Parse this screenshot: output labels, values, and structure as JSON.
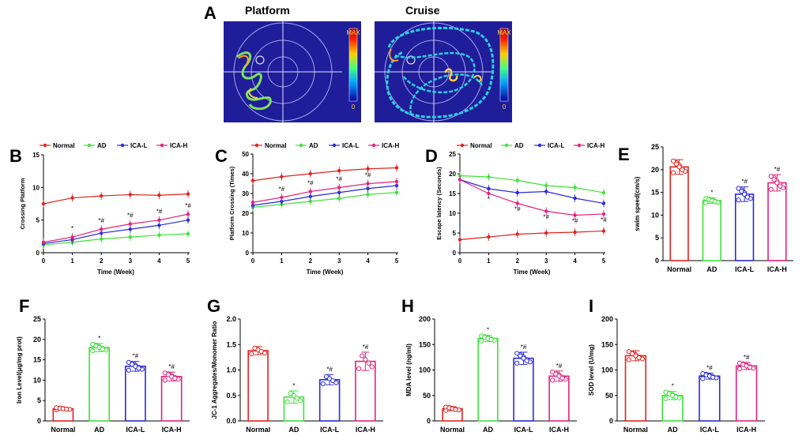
{
  "panel_letters": [
    "A",
    "B",
    "C",
    "D",
    "E",
    "F",
    "G",
    "H",
    "I"
  ],
  "colors": {
    "Normal": "#e0231f",
    "AD": "#3fe23b",
    "ICA-L": "#2a2ad8",
    "ICA-H": "#e0237f",
    "track": "#2ad0e0",
    "pool_bg": "#1f1d9a"
  },
  "panel_a": {
    "titles": [
      "Platform",
      "Cruise"
    ],
    "colorbar_top": "MAX",
    "colorbar_bottom": "0"
  },
  "chart_data": [
    {
      "id": "B",
      "type": "line",
      "legend": [
        "Normal",
        "AD",
        "ICA-L",
        "ICA-H"
      ],
      "xlabel": "Time  (Week)",
      "ylabel": "Crossing Platform",
      "x": [
        0,
        1,
        2,
        3,
        4,
        5
      ],
      "ylim": [
        0,
        15
      ],
      "yticks": [
        0,
        5,
        10,
        15
      ],
      "series": [
        {
          "name": "Normal",
          "values": [
            7.5,
            8.4,
            8.7,
            8.9,
            8.8,
            9.0
          ]
        },
        {
          "name": "AD",
          "values": [
            1.2,
            1.6,
            2.1,
            2.4,
            2.7,
            2.9
          ]
        },
        {
          "name": "ICA-L",
          "values": [
            1.4,
            2.0,
            3.0,
            3.6,
            4.2,
            5.0
          ]
        },
        {
          "name": "ICA-H",
          "values": [
            1.6,
            2.4,
            3.6,
            4.4,
            5.0,
            5.9
          ]
        }
      ],
      "annotations": [
        "*",
        "*#",
        "*#",
        "*#",
        "*#"
      ]
    },
    {
      "id": "C",
      "type": "line",
      "legend": [
        "Normal",
        "AD",
        "ICA-L",
        "ICA-H"
      ],
      "xlabel": "Time  (Week)",
      "ylabel": "Platform Crossing (Times)",
      "x": [
        0,
        1,
        2,
        3,
        4,
        5
      ],
      "ylim": [
        0,
        50
      ],
      "yticks": [
        0,
        10,
        20,
        30,
        40,
        50
      ],
      "series": [
        {
          "name": "Normal",
          "values": [
            36.5,
            38.5,
            40.0,
            41.5,
            42.5,
            43.0
          ]
        },
        {
          "name": "AD",
          "values": [
            23.0,
            24.5,
            26.0,
            27.5,
            29.5,
            30.5
          ]
        },
        {
          "name": "ICA-L",
          "values": [
            24.0,
            26.0,
            28.5,
            30.5,
            32.5,
            34.0
          ]
        },
        {
          "name": "ICA-H",
          "values": [
            25.5,
            28.0,
            31.0,
            33.0,
            35.0,
            36.0
          ]
        }
      ],
      "annotations": [
        "*#",
        "*#",
        "*#",
        "*#"
      ]
    },
    {
      "id": "D",
      "type": "line",
      "legend": [
        "Normal",
        "AD",
        "ICA-L",
        "ICA-H"
      ],
      "xlabel": "Time  (Week)",
      "ylabel": "Escape latency  (Seconds)",
      "x": [
        0,
        1,
        2,
        3,
        4,
        5
      ],
      "ylim": [
        0,
        25
      ],
      "yticks": [
        0,
        5,
        10,
        15,
        20,
        25
      ],
      "series": [
        {
          "name": "Normal",
          "values": [
            3.3,
            4.0,
            4.7,
            5.0,
            5.2,
            5.5
          ]
        },
        {
          "name": "AD",
          "values": [
            19.5,
            19.2,
            18.3,
            17.0,
            16.5,
            15.2
          ]
        },
        {
          "name": "ICA-L",
          "values": [
            18.5,
            16.2,
            15.2,
            15.5,
            13.8,
            12.5
          ]
        },
        {
          "name": "ICA-H",
          "values": [
            18.5,
            15.0,
            12.5,
            10.5,
            9.5,
            9.8
          ]
        }
      ],
      "annotations": [
        "*",
        "*#",
        "*#",
        "*#",
        "*#"
      ]
    },
    {
      "id": "E",
      "type": "bar",
      "categories": [
        "Normal",
        "AD",
        "ICA-L",
        "ICA-H"
      ],
      "ylabel": "swim speed(cm/s)",
      "ylim": [
        0,
        25
      ],
      "yticks": [
        0,
        5,
        10,
        15,
        20,
        25
      ],
      "values": [
        20.6,
        13.2,
        14.6,
        17.1
      ],
      "errors": [
        1.6,
        0.6,
        1.6,
        1.8
      ],
      "annotations": [
        "",
        "*",
        "*#",
        "*#"
      ]
    },
    {
      "id": "F",
      "type": "bar",
      "categories": [
        "Normal",
        "AD",
        "ICA-L",
        "ICA-H"
      ],
      "ylabel": "Iron Level(μg/mg prot)",
      "ylim": [
        0,
        25
      ],
      "yticks": [
        0,
        5,
        10,
        15,
        20,
        25
      ],
      "values": [
        3.0,
        18.0,
        13.4,
        10.9
      ],
      "errors": [
        0.3,
        1.0,
        1.2,
        1.1
      ],
      "annotations": [
        "",
        "*",
        "*#",
        "*#"
      ]
    },
    {
      "id": "G",
      "type": "bar",
      "categories": [
        "Normal",
        "AD",
        "ICA-L",
        "ICA-H"
      ],
      "ylabel": "JC-1 Aggregates/Monomer Ratio",
      "ylim": [
        0,
        2.0
      ],
      "yticks": [
        0.0,
        0.5,
        1.0,
        1.5,
        2.0
      ],
      "values": [
        1.38,
        0.47,
        0.81,
        1.17
      ],
      "errors": [
        0.08,
        0.12,
        0.1,
        0.18
      ],
      "annotations": [
        "",
        "*",
        "*#",
        "*#"
      ]
    },
    {
      "id": "H",
      "type": "bar",
      "categories": [
        "Normal",
        "AD",
        "ICA-L",
        "ICA-H"
      ],
      "ylabel": "MDA level  (ng/ml)",
      "ylim": [
        0,
        200
      ],
      "yticks": [
        0,
        50,
        100,
        150,
        200
      ],
      "values": [
        24,
        162,
        123,
        88
      ],
      "errors": [
        4,
        6,
        12,
        10
      ],
      "annotations": [
        "",
        "*",
        "*#",
        "*#"
      ]
    },
    {
      "id": "I",
      "type": "bar",
      "categories": [
        "Normal",
        "AD",
        "ICA-L",
        "ICA-H"
      ],
      "ylabel": "SOD level  (U/mg)",
      "ylim": [
        0,
        200
      ],
      "yticks": [
        0,
        50,
        100,
        150,
        200
      ],
      "values": [
        128,
        50,
        88,
        108
      ],
      "errors": [
        10,
        8,
        6,
        7
      ],
      "annotations": [
        "",
        "*",
        "*#",
        "*#"
      ]
    }
  ]
}
